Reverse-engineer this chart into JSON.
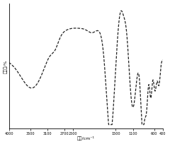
{
  "title": "",
  "xlabel": "波数/cm⁻¹",
  "ylabel": "透过率/%",
  "xlim": [
    4000,
    400
  ],
  "ylim": [
    0,
    100
  ],
  "x_ticks": [
    4000,
    3500,
    3100,
    2700,
    2500,
    1500,
    1100,
    600,
    400
  ],
  "x_tick_labels": [
    "4000",
    "3500",
    "3100",
    "2700",
    "2500",
    "1500",
    "1100",
    "600",
    "400"
  ],
  "background_color": "#ffffff",
  "line_color": "#222222",
  "line_width": 0.9,
  "figsize": [
    2.4,
    2.05
  ],
  "dpi": 100
}
